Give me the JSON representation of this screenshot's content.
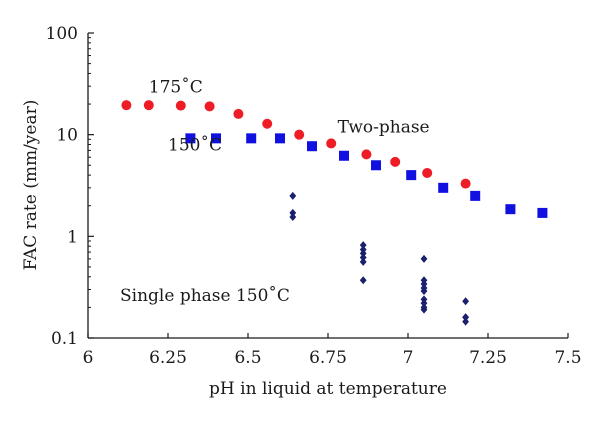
{
  "chart_data": {
    "type": "scatter",
    "title": "",
    "xlabel": "pH in liquid at temperature",
    "ylabel": "FAC rate (mm/year)",
    "xlim": [
      6,
      7.5
    ],
    "ylim": [
      0.1,
      100
    ],
    "yscale": "log",
    "grid": false,
    "legend": "none",
    "x_ticks": [
      6,
      6.25,
      6.5,
      6.75,
      7,
      7.25,
      7.5
    ],
    "x_tick_labels": [
      "6",
      "6.25",
      "6.5",
      "6.75",
      "7",
      "7.25",
      "7.5"
    ],
    "y_ticks": [
      0.1,
      1,
      10,
      100
    ],
    "y_tick_labels": [
      "0.1",
      "1",
      "10",
      "100"
    ],
    "annotations": [
      {
        "text": "175˚C",
        "x": 6.19,
        "y": 26
      },
      {
        "text": "150˚C",
        "x": 6.25,
        "y": 7.0
      },
      {
        "text": "Two-phase",
        "x": 6.78,
        "y": 10.5
      },
      {
        "text": "Single phase 150˚C",
        "x": 6.1,
        "y": 0.23
      }
    ],
    "series": [
      {
        "marker": "circle",
        "color": "#ee1c25",
        "x": [
          6.12,
          6.19,
          6.29,
          6.38,
          6.47,
          6.56,
          6.66,
          6.76,
          6.87,
          6.96,
          7.06,
          7.18
        ],
        "y": [
          19.5,
          19.5,
          19.3,
          19.0,
          16.0,
          12.8,
          10.0,
          8.2,
          6.4,
          5.4,
          4.2,
          3.3
        ]
      },
      {
        "marker": "square",
        "color": "#1010e0",
        "x": [
          6.32,
          6.4,
          6.51,
          6.6,
          6.7,
          6.8,
          6.9,
          7.01,
          7.11,
          7.21,
          7.32,
          7.42
        ],
        "y": [
          9.2,
          9.2,
          9.2,
          9.2,
          7.7,
          6.2,
          5.0,
          4.0,
          3.0,
          2.5,
          1.85,
          1.7
        ]
      },
      {
        "marker": "diamond",
        "color": "#1a1f6e",
        "x": [
          6.64,
          6.64,
          6.64,
          6.86,
          6.86,
          6.86,
          6.86,
          6.86,
          6.86,
          7.05,
          7.05,
          7.05,
          7.05,
          7.05,
          7.05,
          7.05,
          7.05,
          7.05,
          7.18,
          7.18,
          7.18,
          7.18
        ],
        "y": [
          2.5,
          1.7,
          1.55,
          0.82,
          0.74,
          0.68,
          0.62,
          0.56,
          0.37,
          0.6,
          0.34,
          0.31,
          0.29,
          0.24,
          0.22,
          0.2,
          0.19,
          0.37,
          0.23,
          0.16,
          0.145,
          0.16
        ]
      }
    ]
  }
}
